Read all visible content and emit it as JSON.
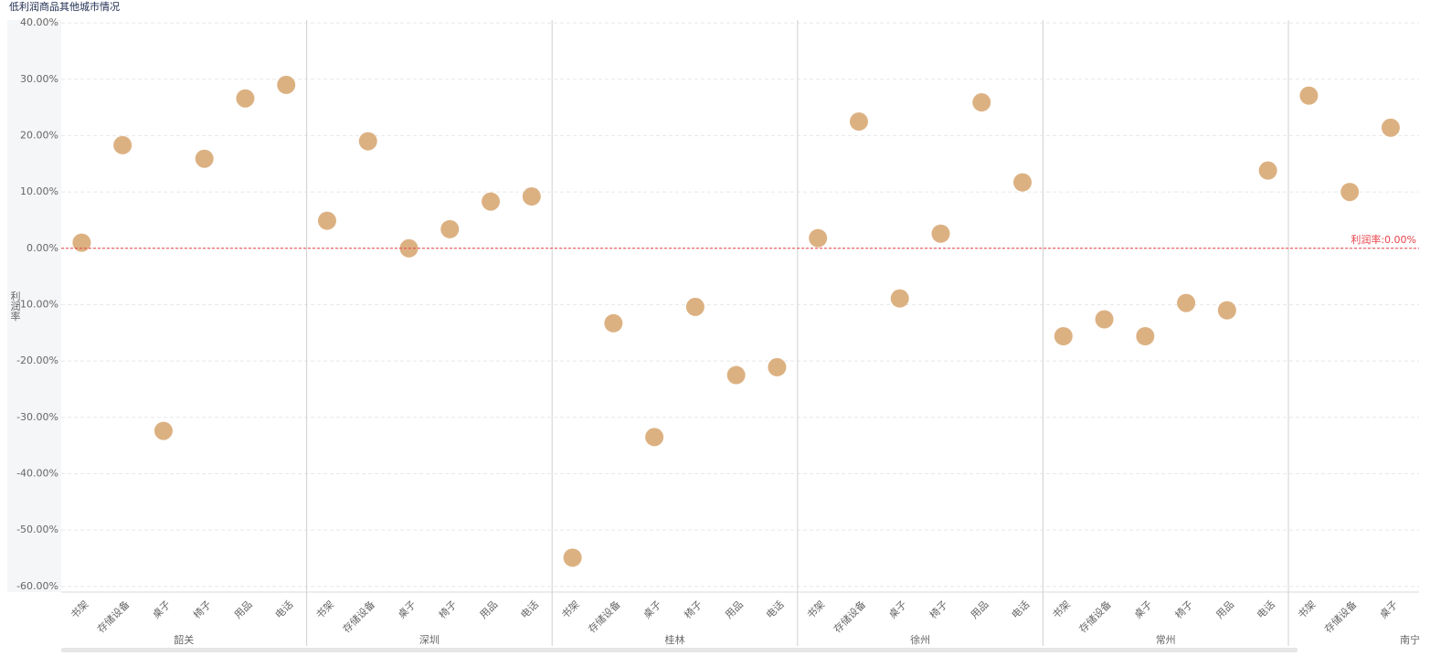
{
  "chart_data": {
    "type": "dot",
    "title": "低利润商品其他城市情况",
    "y_label": "利润率",
    "color": "#dcb182",
    "ylim": [
      -61,
      40.5
    ],
    "yticks": [
      {
        "value": 40,
        "label": "40.00%"
      },
      {
        "value": 30,
        "label": "30.00%"
      },
      {
        "value": 20,
        "label": "20.00%"
      },
      {
        "value": 10,
        "label": "10.00%"
      },
      {
        "value": 0,
        "label": "0.00%"
      },
      {
        "value": -10,
        "label": "-10.00%"
      },
      {
        "value": -20,
        "label": "-20.00%"
      },
      {
        "value": -30,
        "label": "-30.00%"
      },
      {
        "value": -40,
        "label": "-40.00%"
      },
      {
        "value": -50,
        "label": "-50.00%"
      },
      {
        "value": -60,
        "label": "-60.00%"
      }
    ],
    "grid": true,
    "reference_line": {
      "value": 0,
      "label": "利润率:0.00%",
      "color": "#e8434a"
    },
    "groups": [
      {
        "name": "韶关",
        "categories": [
          "书架",
          "存储设备",
          "桌子",
          "椅子",
          "用品",
          "电话"
        ],
        "values": [
          1.0,
          18.3,
          -32.4,
          15.9,
          26.6,
          29.0
        ]
      },
      {
        "name": "深圳",
        "categories": [
          "书架",
          "存储设备",
          "桌子",
          "椅子",
          "用品",
          "电话"
        ],
        "values": [
          4.9,
          19.0,
          0.0,
          3.4,
          8.3,
          9.2
        ]
      },
      {
        "name": "桂林",
        "categories": [
          "书架",
          "存储设备",
          "桌子",
          "椅子",
          "用品",
          "电话"
        ],
        "values": [
          -54.9,
          -13.3,
          -33.5,
          -10.4,
          -22.5,
          -21.1
        ]
      },
      {
        "name": "徐州",
        "categories": [
          "书架",
          "存储设备",
          "桌子",
          "椅子",
          "用品",
          "电话"
        ],
        "values": [
          1.8,
          22.5,
          -8.9,
          2.6,
          25.9,
          11.7
        ]
      },
      {
        "name": "常州",
        "categories": [
          "书架",
          "存储设备",
          "桌子",
          "椅子",
          "用品",
          "电话"
        ],
        "values": [
          -15.6,
          -12.6,
          -15.6,
          -9.7,
          -11.0,
          13.8
        ]
      },
      {
        "name": "南宁",
        "categories": [
          "书架",
          "存储设备",
          "桌子"
        ],
        "values": [
          27.1,
          10.0,
          21.4
        ]
      }
    ]
  }
}
